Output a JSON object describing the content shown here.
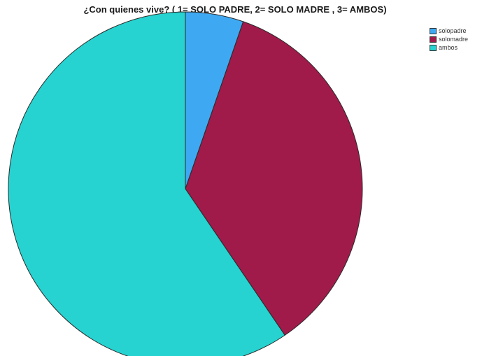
{
  "chart_data": {
    "type": "pie",
    "title": "¿Con quienes vive? ( 1= SOLO PADRE, 2= SOLO MADRE , 3= AMBOS)",
    "categories": [
      "solopadre",
      "solomadre",
      "ambos"
    ],
    "values": [
      5.3,
      35.2,
      59.5
    ],
    "colors": [
      "#3ea9f2",
      "#a01a4a",
      "#26d3d0"
    ],
    "start_angle": "12 o'clock",
    "direction": "clockwise",
    "legend_position": "top-right"
  }
}
